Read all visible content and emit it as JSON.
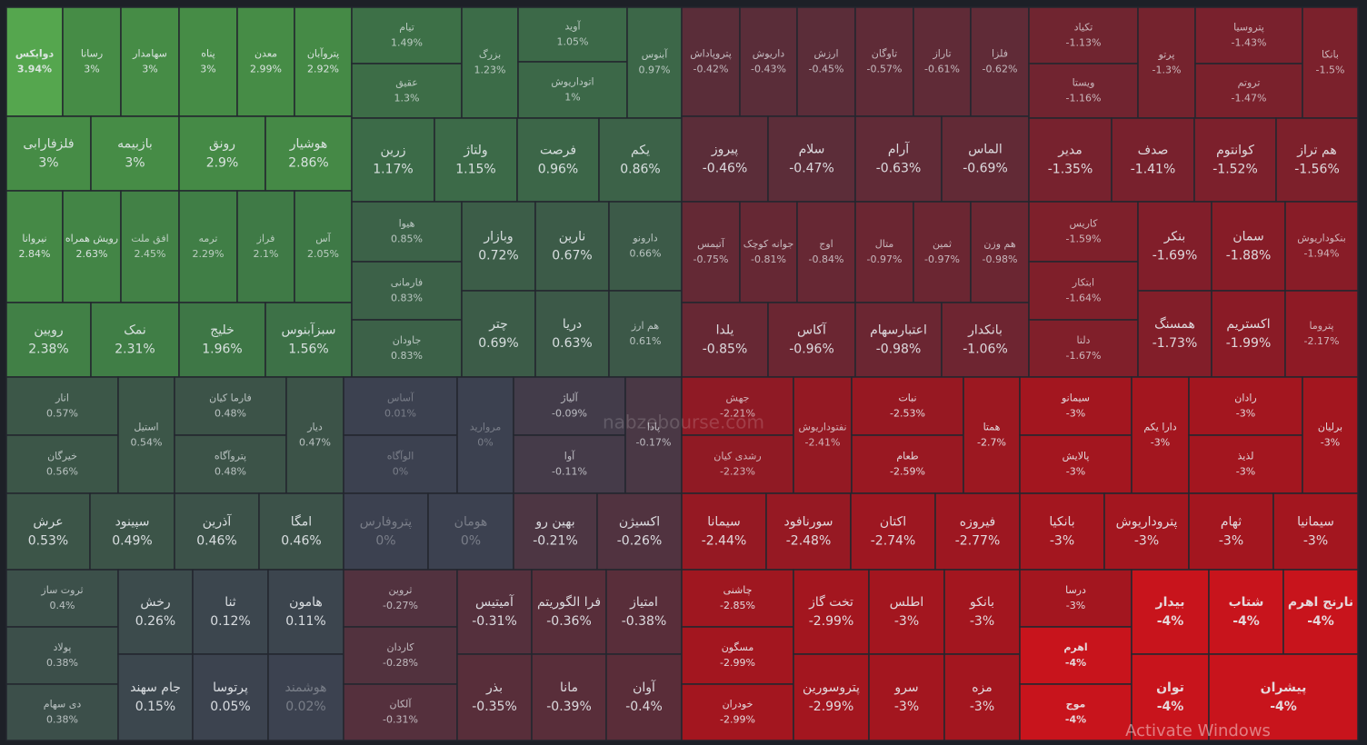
{
  "chart_data": {
    "type": "treemap",
    "tiles": [
      {
        "name": "دوایکس",
        "value": 3.94,
        "value_label": "3.94%"
      },
      {
        "name": "رسانا",
        "value": 3,
        "value_label": "3%"
      },
      {
        "name": "سهامدار",
        "value": 3,
        "value_label": "3%"
      },
      {
        "name": "پناه",
        "value": 3,
        "value_label": "3%"
      },
      {
        "name": "معدن",
        "value": 2.99,
        "value_label": "2.99%"
      },
      {
        "name": "پتروآبان",
        "value": 2.92,
        "value_label": "2.92%"
      },
      {
        "name": "فلزفارابی",
        "value": 3,
        "value_label": "3%"
      },
      {
        "name": "بازبیمه",
        "value": 3,
        "value_label": "3%"
      },
      {
        "name": "رونق",
        "value": 2.9,
        "value_label": "2.9%"
      },
      {
        "name": "هوشیار",
        "value": 2.86,
        "value_label": "2.86%"
      },
      {
        "name": "نیروانا",
        "value": 2.84,
        "value_label": "2.84%"
      },
      {
        "name": "رویش همراه",
        "value": 2.63,
        "value_label": "2.63%"
      },
      {
        "name": "افق ملت",
        "value": 2.45,
        "value_label": "2.45%"
      },
      {
        "name": "ترمه",
        "value": 2.29,
        "value_label": "2.29%"
      },
      {
        "name": "فراز",
        "value": 2.1,
        "value_label": "2.1%"
      },
      {
        "name": "آس",
        "value": 2.05,
        "value_label": "2.05%"
      },
      {
        "name": "رویین",
        "value": 2.38,
        "value_label": "2.38%"
      },
      {
        "name": "نمک",
        "value": 2.31,
        "value_label": "2.31%"
      },
      {
        "name": "خلیج",
        "value": 1.96,
        "value_label": "1.96%"
      },
      {
        "name": "سبزآبنوس",
        "value": 1.56,
        "value_label": "1.56%"
      },
      {
        "name": "تیام",
        "value": 1.49,
        "value_label": "1.49%"
      },
      {
        "name": "عقیق",
        "value": 1.3,
        "value_label": "1.3%"
      },
      {
        "name": "بزرگ",
        "value": 1.23,
        "value_label": "1.23%"
      },
      {
        "name": "آوید",
        "value": 1.05,
        "value_label": "1.05%"
      },
      {
        "name": "اتوداریوش",
        "value": 1,
        "value_label": "1%"
      },
      {
        "name": "آبنوس",
        "value": 0.97,
        "value_label": "0.97%"
      },
      {
        "name": "زرین",
        "value": 1.17,
        "value_label": "1.17%"
      },
      {
        "name": "ولتاژ",
        "value": 1.15,
        "value_label": "1.15%"
      },
      {
        "name": "فرصت",
        "value": 0.96,
        "value_label": "0.96%"
      },
      {
        "name": "یکم",
        "value": 0.86,
        "value_label": "0.86%"
      },
      {
        "name": "هیوا",
        "value": 0.85,
        "value_label": "0.85%"
      },
      {
        "name": "فارمانی",
        "value": 0.83,
        "value_label": "0.83%"
      },
      {
        "name": "جاودان",
        "value": 0.83,
        "value_label": "0.83%"
      },
      {
        "name": "وبازار",
        "value": 0.72,
        "value_label": "0.72%"
      },
      {
        "name": "نارین",
        "value": 0.67,
        "value_label": "0.67%"
      },
      {
        "name": "دارونو",
        "value": 0.66,
        "value_label": "0.66%"
      },
      {
        "name": "چتر",
        "value": 0.69,
        "value_label": "0.69%"
      },
      {
        "name": "دریا",
        "value": 0.63,
        "value_label": "0.63%"
      },
      {
        "name": "هم ارز",
        "value": 0.61,
        "value_label": "0.61%"
      },
      {
        "name": "پتروپاداش",
        "value": -0.42,
        "value_label": "-0.42%"
      },
      {
        "name": "داریوش",
        "value": -0.43,
        "value_label": "-0.43%"
      },
      {
        "name": "ارزش",
        "value": -0.45,
        "value_label": "-0.45%"
      },
      {
        "name": "تاوگان",
        "value": -0.57,
        "value_label": "-0.57%"
      },
      {
        "name": "تاراز",
        "value": -0.61,
        "value_label": "-0.61%"
      },
      {
        "name": "فلزا",
        "value": -0.62,
        "value_label": "-0.62%"
      },
      {
        "name": "پیروز",
        "value": -0.46,
        "value_label": "-0.46%"
      },
      {
        "name": "سلام",
        "value": -0.47,
        "value_label": "-0.47%"
      },
      {
        "name": "آرام",
        "value": -0.63,
        "value_label": "-0.63%"
      },
      {
        "name": "الماس",
        "value": -0.69,
        "value_label": "-0.69%"
      },
      {
        "name": "آتیمس",
        "value": -0.75,
        "value_label": "-0.75%"
      },
      {
        "name": "جوانه کوچک",
        "value": -0.81,
        "value_label": "-0.81%"
      },
      {
        "name": "اوج",
        "value": -0.84,
        "value_label": "-0.84%"
      },
      {
        "name": "متال",
        "value": -0.97,
        "value_label": "-0.97%"
      },
      {
        "name": "ثمین",
        "value": -0.97,
        "value_label": "-0.97%"
      },
      {
        "name": "هم وزن",
        "value": -0.98,
        "value_label": "-0.98%"
      },
      {
        "name": "یلدا",
        "value": -0.85,
        "value_label": "-0.85%"
      },
      {
        "name": "آکاس",
        "value": -0.96,
        "value_label": "-0.96%"
      },
      {
        "name": "اعتبارسهام",
        "value": -0.98,
        "value_label": "-0.98%"
      },
      {
        "name": "بانکدار",
        "value": -1.06,
        "value_label": "-1.06%"
      },
      {
        "name": "تکیاد",
        "value": -1.13,
        "value_label": "-1.13%"
      },
      {
        "name": "ویستا",
        "value": -1.16,
        "value_label": "-1.16%"
      },
      {
        "name": "پرتو",
        "value": -1.3,
        "value_label": "-1.3%"
      },
      {
        "name": "پتروسیا",
        "value": -1.43,
        "value_label": "-1.43%"
      },
      {
        "name": "تروتم",
        "value": -1.47,
        "value_label": "-1.47%"
      },
      {
        "name": "بانکا",
        "value": -1.5,
        "value_label": "-1.5%"
      },
      {
        "name": "مدیر",
        "value": -1.35,
        "value_label": "-1.35%"
      },
      {
        "name": "صدف",
        "value": -1.41,
        "value_label": "-1.41%"
      },
      {
        "name": "کوانتوم",
        "value": -1.52,
        "value_label": "-1.52%"
      },
      {
        "name": "هم تراز",
        "value": -1.56,
        "value_label": "-1.56%"
      },
      {
        "name": "کاریس",
        "value": -1.59,
        "value_label": "-1.59%"
      },
      {
        "name": "ابتکار",
        "value": -1.64,
        "value_label": "-1.64%"
      },
      {
        "name": "دلتا",
        "value": -1.67,
        "value_label": "-1.67%"
      },
      {
        "name": "بنکر",
        "value": -1.69,
        "value_label": "-1.69%"
      },
      {
        "name": "سمان",
        "value": -1.88,
        "value_label": "-1.88%"
      },
      {
        "name": "بنکوداریوش",
        "value": -1.94,
        "value_label": "-1.94%"
      },
      {
        "name": "همسنگ",
        "value": -1.73,
        "value_label": "-1.73%"
      },
      {
        "name": "اکستریم",
        "value": -1.99,
        "value_label": "-1.99%"
      },
      {
        "name": "پتروما",
        "value": -2.17,
        "value_label": "-2.17%"
      },
      {
        "name": "انار",
        "value": 0.57,
        "value_label": "0.57%"
      },
      {
        "name": "خیرگان",
        "value": 0.56,
        "value_label": "0.56%"
      },
      {
        "name": "استیل",
        "value": 0.54,
        "value_label": "0.54%"
      },
      {
        "name": "فارما کیان",
        "value": 0.48,
        "value_label": "0.48%"
      },
      {
        "name": "پتروآگاه",
        "value": 0.48,
        "value_label": "0.48%"
      },
      {
        "name": "دیار",
        "value": 0.47,
        "value_label": "0.47%"
      },
      {
        "name": "عرش",
        "value": 0.53,
        "value_label": "0.53%"
      },
      {
        "name": "سپینود",
        "value": 0.49,
        "value_label": "0.49%"
      },
      {
        "name": "آذرین",
        "value": 0.46,
        "value_label": "0.46%"
      },
      {
        "name": "امگا",
        "value": 0.46,
        "value_label": "0.46%"
      },
      {
        "name": "ثروت ساز",
        "value": 0.4,
        "value_label": "0.4%"
      },
      {
        "name": "پولاد",
        "value": 0.38,
        "value_label": "0.38%"
      },
      {
        "name": "دی سهام",
        "value": 0.38,
        "value_label": "0.38%"
      },
      {
        "name": "رخش",
        "value": 0.26,
        "value_label": "0.26%"
      },
      {
        "name": "ثنا",
        "value": 0.12,
        "value_label": "0.12%"
      },
      {
        "name": "هامون",
        "value": 0.11,
        "value_label": "0.11%"
      },
      {
        "name": "جام سهند",
        "value": 0.15,
        "value_label": "0.15%"
      },
      {
        "name": "پرتوسا",
        "value": 0.05,
        "value_label": "0.05%"
      },
      {
        "name": "هوشمند",
        "value": 0.02,
        "value_label": "0.02%"
      },
      {
        "name": "آساس",
        "value": 0.01,
        "value_label": "0.01%"
      },
      {
        "name": "الوآگاه",
        "value": 0,
        "value_label": "0%"
      },
      {
        "name": "مروارید",
        "value": 0,
        "value_label": "0%"
      },
      {
        "name": "پتروفارس",
        "value": 0,
        "value_label": "0%"
      },
      {
        "name": "هومان",
        "value": 0,
        "value_label": "0%"
      },
      {
        "name": "آلیاژ",
        "value": -0.09,
        "value_label": "-0.09%"
      },
      {
        "name": "آوا",
        "value": -0.11,
        "value_label": "-0.11%"
      },
      {
        "name": "پادا",
        "value": -0.17,
        "value_label": "-0.17%"
      },
      {
        "name": "بهین رو",
        "value": -0.21,
        "value_label": "-0.21%"
      },
      {
        "name": "اکسیژن",
        "value": -0.26,
        "value_label": "-0.26%"
      },
      {
        "name": "ثروین",
        "value": -0.27,
        "value_label": "-0.27%"
      },
      {
        "name": "کاردان",
        "value": -0.28,
        "value_label": "-0.28%"
      },
      {
        "name": "آلکان",
        "value": -0.31,
        "value_label": "-0.31%"
      },
      {
        "name": "آمیتیس",
        "value": -0.31,
        "value_label": "-0.31%"
      },
      {
        "name": "فرا الگوریتم",
        "value": -0.36,
        "value_label": "-0.36%"
      },
      {
        "name": "امتیاز",
        "value": -0.38,
        "value_label": "-0.38%"
      },
      {
        "name": "بذر",
        "value": -0.35,
        "value_label": "-0.35%"
      },
      {
        "name": "مانا",
        "value": -0.39,
        "value_label": "-0.39%"
      },
      {
        "name": "آوان",
        "value": -0.4,
        "value_label": "-0.4%"
      },
      {
        "name": "جهش",
        "value": -2.21,
        "value_label": "-2.21%"
      },
      {
        "name": "رشدی کیان",
        "value": -2.23,
        "value_label": "-2.23%"
      },
      {
        "name": "نفتوداریوش",
        "value": -2.41,
        "value_label": "-2.41%"
      },
      {
        "name": "نبات",
        "value": -2.53,
        "value_label": "-2.53%"
      },
      {
        "name": "طعام",
        "value": -2.59,
        "value_label": "-2.59%"
      },
      {
        "name": "همتا",
        "value": -2.7,
        "value_label": "-2.7%"
      },
      {
        "name": "سیمانا",
        "value": -2.44,
        "value_label": "-2.44%"
      },
      {
        "name": "سورنافود",
        "value": -2.48,
        "value_label": "-2.48%"
      },
      {
        "name": "اکتان",
        "value": -2.74,
        "value_label": "-2.74%"
      },
      {
        "name": "فیروزه",
        "value": -2.77,
        "value_label": "-2.77%"
      },
      {
        "name": "سیمانو",
        "value": -3,
        "value_label": "-3%"
      },
      {
        "name": "پالایش",
        "value": -3,
        "value_label": "-3%"
      },
      {
        "name": "دارا یکم",
        "value": -3,
        "value_label": "-3%"
      },
      {
        "name": "رادان",
        "value": -3,
        "value_label": "-3%"
      },
      {
        "name": "لذیذ",
        "value": -3,
        "value_label": "-3%"
      },
      {
        "name": "برلیان",
        "value": -3,
        "value_label": "-3%"
      },
      {
        "name": "بانکیا",
        "value": -3,
        "value_label": "-3%"
      },
      {
        "name": "پتروداریوش",
        "value": -3,
        "value_label": "-3%"
      },
      {
        "name": "ثهام",
        "value": -3,
        "value_label": "-3%"
      },
      {
        "name": "سیمانیا",
        "value": -3,
        "value_label": "-3%"
      },
      {
        "name": "چاشنی",
        "value": -2.85,
        "value_label": "-2.85%"
      },
      {
        "name": "مسگون",
        "value": -2.99,
        "value_label": "-2.99%"
      },
      {
        "name": "خودران",
        "value": -2.99,
        "value_label": "-2.99%"
      },
      {
        "name": "تخت گاز",
        "value": -2.99,
        "value_label": "-2.99%"
      },
      {
        "name": "اطلس",
        "value": -3,
        "value_label": "-3%"
      },
      {
        "name": "بانکو",
        "value": -3,
        "value_label": "-3%"
      },
      {
        "name": "پتروسورین",
        "value": -2.99,
        "value_label": "-2.99%"
      },
      {
        "name": "سرو",
        "value": -3,
        "value_label": "-3%"
      },
      {
        "name": "مزه",
        "value": -3,
        "value_label": "-3%"
      },
      {
        "name": "درسا",
        "value": -3,
        "value_label": "-3%"
      },
      {
        "name": "اهرم",
        "value": -4,
        "value_label": "-4%"
      },
      {
        "name": "موج",
        "value": -4,
        "value_label": "-4%"
      },
      {
        "name": "بیدار",
        "value": -4,
        "value_label": "-4%"
      },
      {
        "name": "شتاب",
        "value": -4,
        "value_label": "-4%"
      },
      {
        "name": "نارنج اهرم",
        "value": -4,
        "value_label": "-4%"
      },
      {
        "name": "توان",
        "value": -4,
        "value_label": "-4%"
      },
      {
        "name": "پیشران",
        "value": -4,
        "value_label": "-4%"
      }
    ],
    "watermark": "nabzebourse.com",
    "overlay": "Activate Windows"
  }
}
